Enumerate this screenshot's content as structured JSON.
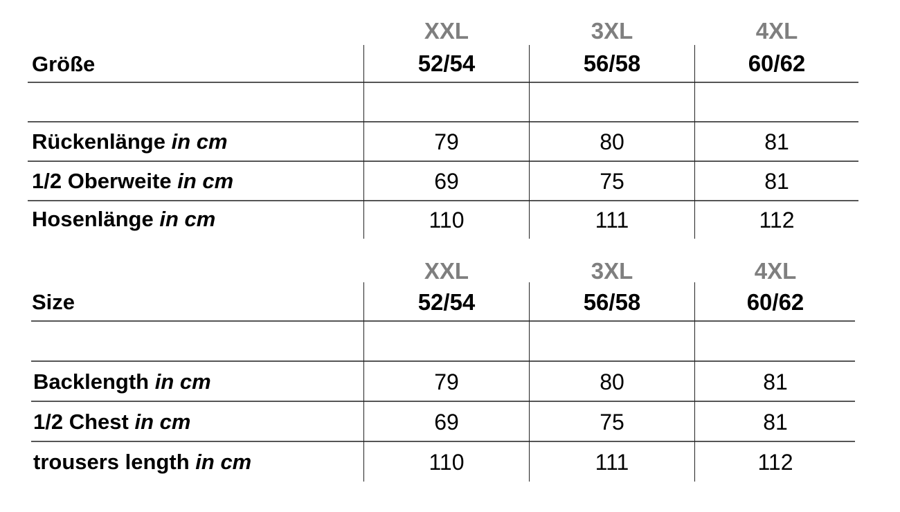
{
  "tables": [
    {
      "header_label": "Größe",
      "columns": [
        {
          "size": "XXL",
          "range": "52/54"
        },
        {
          "size": "3XL",
          "range": "56/58"
        },
        {
          "size": "4XL",
          "range": "60/62"
        }
      ],
      "unit": "in cm",
      "rows": [
        {
          "label": "Rückenlänge",
          "values": [
            "79",
            "80",
            "81"
          ]
        },
        {
          "label": "1/2 Oberweite",
          "values": [
            "69",
            "75",
            "81"
          ]
        },
        {
          "label": "Hosenlänge",
          "values": [
            "110",
            "111",
            "112"
          ]
        }
      ]
    },
    {
      "header_label": "Size",
      "columns": [
        {
          "size": "XXL",
          "range": "52/54"
        },
        {
          "size": "3XL",
          "range": "56/58"
        },
        {
          "size": "4XL",
          "range": "60/62"
        }
      ],
      "unit": "in cm",
      "rows": [
        {
          "label": "Backlength",
          "values": [
            "79",
            "80",
            "81"
          ]
        },
        {
          "label": "1/2 Chest",
          "values": [
            "69",
            "75",
            "81"
          ]
        },
        {
          "label": "trousers length",
          "values": [
            "110",
            "111",
            "112"
          ]
        }
      ]
    }
  ],
  "colors": {
    "size_label": "#7f7f7f",
    "text": "#000000"
  }
}
